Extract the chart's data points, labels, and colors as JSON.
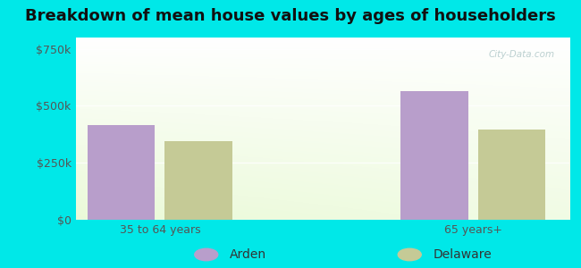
{
  "title": "Breakdown of mean house values by ages of householders",
  "categories": [
    "35 to 64 years",
    "65 years+"
  ],
  "series": [
    {
      "label": "Arden",
      "color": "#b89ecb",
      "values": [
        415000,
        565000
      ]
    },
    {
      "label": "Delaware",
      "color": "#c5ca96",
      "values": [
        345000,
        395000
      ]
    }
  ],
  "ylim": [
    0,
    800000
  ],
  "yticks": [
    0,
    250000,
    500000,
    750000
  ],
  "ytick_labels": [
    "$0",
    "$250k",
    "$500k",
    "$750k"
  ],
  "background_outer": "#00e8e8",
  "title_fontsize": 13,
  "legend_fontsize": 10,
  "tick_fontsize": 9,
  "bar_width": 0.28,
  "group_positions": [
    0.35,
    1.65
  ],
  "xlim": [
    0.0,
    2.05
  ]
}
